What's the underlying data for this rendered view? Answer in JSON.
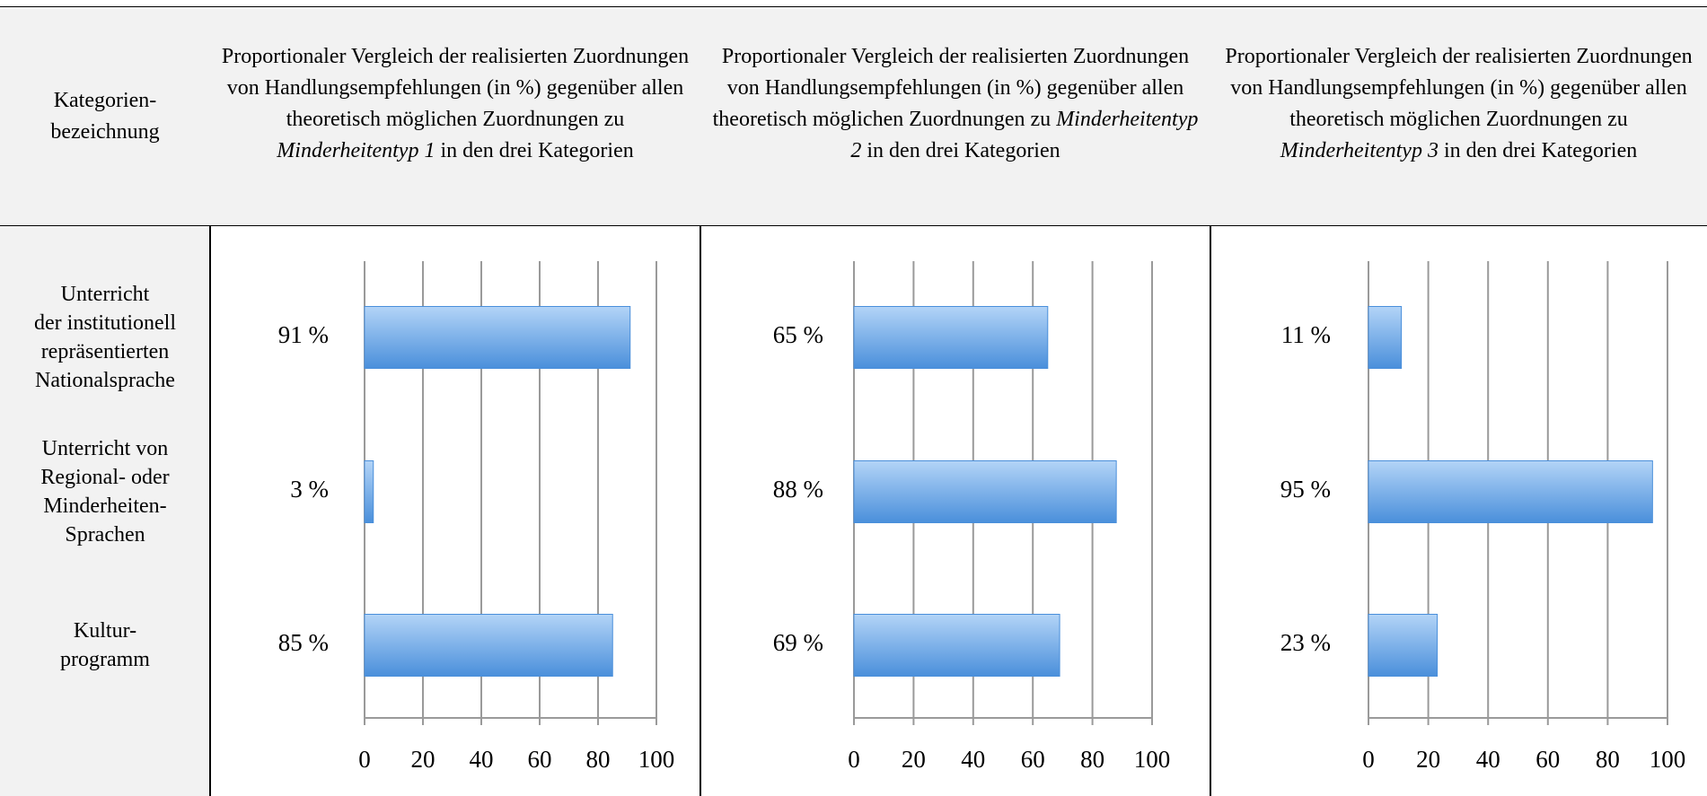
{
  "table": {
    "corner": "Kategorien-\nbezeichnung",
    "categories": [
      "Unterricht\nder institutionell\nrepräsentierten\nNationalsprache",
      "Unterricht von\nRegional- oder\nMinderheiten-\nSprachen",
      "Kultur-\nprogramm"
    ]
  },
  "chart_data": [
    {
      "type": "bar",
      "orientation": "horizontal",
      "title": [
        "Proportionaler Vergleich der realisierten Zuordnungen von Handlungsempfehlungen (in %) gegenüber allen theoretisch möglichen Zuordnungen zu",
        "Minderheitentyp 1",
        "in den drei Kategorien"
      ],
      "values": [
        91,
        3,
        85
      ],
      "value_labels": [
        "91 %",
        "3 %",
        "85 %"
      ],
      "color": "#4a8fdb",
      "xlim": [
        0,
        100
      ],
      "xticks": [
        0,
        20,
        40,
        60,
        80,
        100
      ],
      "grid": true
    },
    {
      "type": "bar",
      "orientation": "horizontal",
      "title": [
        "Proportionaler Vergleich der realisierten Zuordnungen von Handlungsempfehlungen (in %) gegenüber allen theoretisch möglichen Zuordnungen zu",
        "Minderheitentyp 2",
        "in den drei Kategorien"
      ],
      "values": [
        65,
        88,
        69
      ],
      "value_labels": [
        "65 %",
        "88 %",
        "69 %"
      ],
      "color": "#4a8fdb",
      "xlim": [
        0,
        100
      ],
      "xticks": [
        0,
        20,
        40,
        60,
        80,
        100
      ],
      "grid": true
    },
    {
      "type": "bar",
      "orientation": "horizontal",
      "title": [
        "Proportionaler Vergleich der realisierten Zuordnungen von Handlungsempfehlungen (in %) gegenüber allen theoretisch möglichen Zuordnungen zu",
        "Minderheitentyp 3",
        "in den drei Kategorien"
      ],
      "values": [
        11,
        95,
        23
      ],
      "value_labels": [
        "11 %",
        "95 %",
        "23 %"
      ],
      "color": "#4a8fdb",
      "xlim": [
        0,
        100
      ],
      "xticks": [
        0,
        20,
        40,
        60,
        80,
        100
      ],
      "grid": true
    }
  ]
}
